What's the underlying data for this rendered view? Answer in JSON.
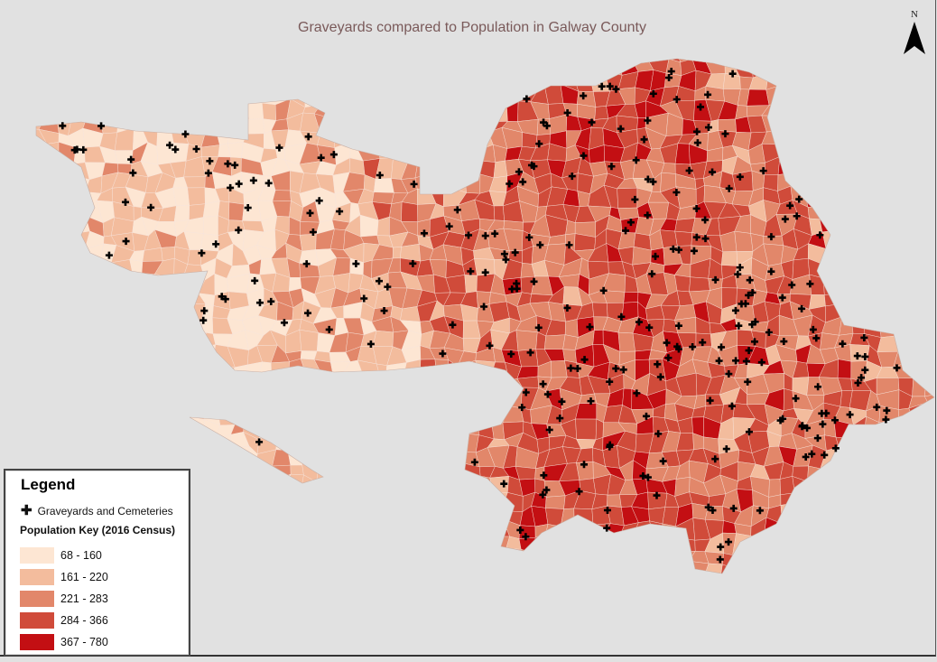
{
  "title": "Graveyards compared to Population in Galway County",
  "north_arrow": {
    "label": "N",
    "icon": "north-arrow-icon"
  },
  "legend": {
    "title": "Legend",
    "point_layer": {
      "label": "Graveyards and Cemeteries",
      "symbol": "✚",
      "icon": "cross-icon"
    },
    "population_key_title": "Population Key (2016 Census)",
    "classes": [
      {
        "label": "68 - 160",
        "color": "#fde6d3"
      },
      {
        "label": "161 - 220",
        "color": "#f3bc9d"
      },
      {
        "label": "221 - 283",
        "color": "#e2876a"
      },
      {
        "label": "284 - 366",
        "color": "#d04b3a"
      },
      {
        "label": "367 - 780",
        "color": "#c30f13"
      }
    ]
  },
  "colors": {
    "background": "#e1e1e1",
    "title": "#7a5a5a",
    "marker": "#000000"
  }
}
